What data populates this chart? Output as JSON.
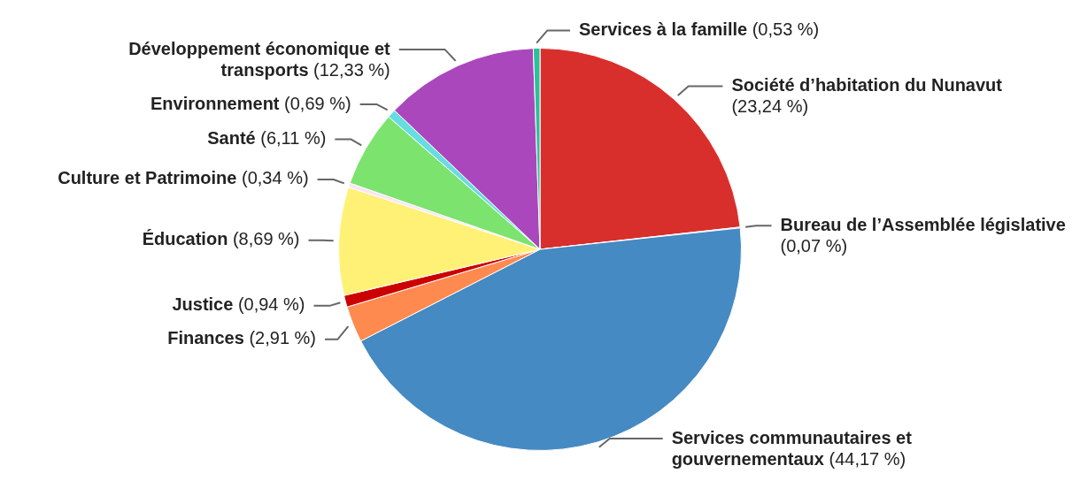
{
  "chart_data": {
    "type": "pie",
    "categories": [
      "Société d’habitation du Nunavut",
      "Bureau de l’Assemblée législative",
      "Services communautaires et gouvernementaux",
      "Finances",
      "Justice",
      "Éducation",
      "Culture et Patrimoine",
      "Santé",
      "Environnement",
      "Développement économique et transports",
      "Services à la famille"
    ],
    "values": [
      23.24,
      0.07,
      44.17,
      2.91,
      0.94,
      8.69,
      0.34,
      6.11,
      0.69,
      12.33,
      0.53
    ],
    "value_labels": [
      "(23,24 %)",
      "(0,07 %)",
      "(44,17 %)",
      "(2,91 %)",
      "(0,94 %)",
      "(8,69 %)",
      "(0,34 %)",
      "(6,11 %)",
      "(0,69 %)",
      "(12,33 %)",
      "(0,53 %)"
    ],
    "colors": [
      "#d92f2c",
      "#9e9e9e",
      "#458ac2",
      "#ff8a50",
      "#cc0000",
      "#fff176",
      "#fce4f4",
      "#7be36e",
      "#66dde0",
      "#ab47bc",
      "#2dbf9c"
    ],
    "legend": false
  }
}
